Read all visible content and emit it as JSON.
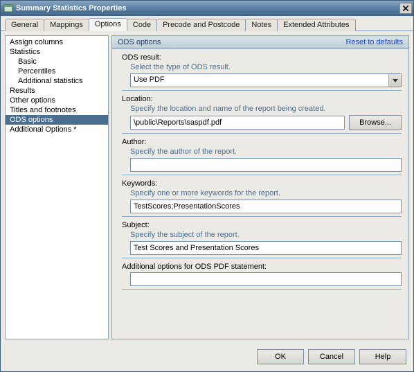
{
  "window": {
    "title": "Summary Statistics Properties"
  },
  "tabs": {
    "items": [
      "General",
      "Mappings",
      "Options",
      "Code",
      "Precode and Postcode",
      "Notes",
      "Extended Attributes"
    ],
    "active_index": 2
  },
  "tree": {
    "items": [
      {
        "label": "Assign columns",
        "indent": 0
      },
      {
        "label": "Statistics",
        "indent": 0
      },
      {
        "label": "Basic",
        "indent": 1
      },
      {
        "label": "Percentiles",
        "indent": 1
      },
      {
        "label": "Additional statistics",
        "indent": 1
      },
      {
        "label": "Results",
        "indent": 0
      },
      {
        "label": "Other options",
        "indent": 0
      },
      {
        "label": "Titles and footnotes",
        "indent": 0
      },
      {
        "label": "ODS options",
        "indent": 0,
        "selected": true
      },
      {
        "label": "Additional Options *",
        "indent": 0
      }
    ]
  },
  "panel": {
    "title": "ODS options",
    "reset": "Reset to defaults",
    "ods_result": {
      "label": "ODS result:",
      "hint": "Select the type of ODS result.",
      "value": "Use PDF"
    },
    "location": {
      "label": "Location:",
      "hint": "Specify the location and name of the report being created.",
      "value": "\\public\\Reports\\saspdf.pdf",
      "browse": "Browse..."
    },
    "author": {
      "label": "Author:",
      "hint": "Specify the author of the report.",
      "value": ""
    },
    "keywords": {
      "label": "Keywords:",
      "hint": "Specify one or more keywords for the report.",
      "value": "TestScores;PresentationScores"
    },
    "subject": {
      "label": "Subject:",
      "hint": "Specify the subject of the report.",
      "value": "Test Scores and Presentation Scores"
    },
    "additional": {
      "label": "Additional options for ODS PDF statement:",
      "value": ""
    }
  },
  "footer": {
    "ok": "OK",
    "cancel": "Cancel",
    "help": "Help"
  },
  "colors": {
    "titlebar_grad_top": "#8aa6c1",
    "titlebar_grad_bot": "#3f6186",
    "panel_bg": "#eceae5",
    "hint_color": "#4a6e8f",
    "link_color": "#1a49c4",
    "select_bg": "#4a6e8f",
    "border": "#8a9fb5"
  }
}
